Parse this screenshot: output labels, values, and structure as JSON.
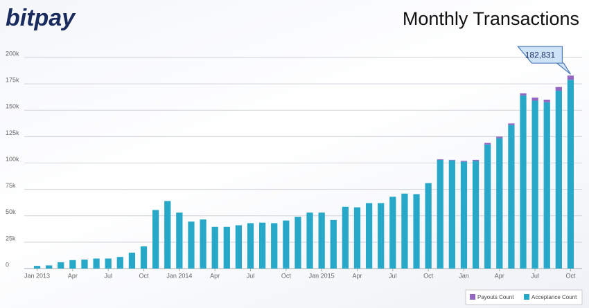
{
  "chart_data": {
    "type": "stacked_bar",
    "logo": "bitpay",
    "title": "Monthly Transactions",
    "annotation": "182,831",
    "categories": [
      "Jan 2013",
      null,
      null,
      "Apr",
      null,
      null,
      "Jul",
      null,
      null,
      "Oct",
      null,
      null,
      "Jan 2014",
      null,
      null,
      "Apr",
      null,
      null,
      "Jul",
      null,
      null,
      "Oct",
      null,
      null,
      "Jan 2015",
      null,
      null,
      "Apr",
      null,
      null,
      "Jul",
      null,
      null,
      "Oct",
      null,
      null,
      "Jan",
      null,
      null,
      "Apr",
      null,
      null,
      "Jul",
      null,
      null,
      "Oct"
    ],
    "series": [
      {
        "name": "Payouts Count",
        "color": "#9467c4",
        "values": [
          0,
          0,
          0,
          0,
          0,
          0,
          0,
          0,
          0,
          0,
          0,
          0,
          0,
          0,
          0,
          0,
          0,
          0,
          0,
          0,
          0,
          0,
          0,
          0,
          0,
          0,
          0,
          0,
          0,
          0,
          0,
          0,
          0,
          0,
          500,
          500,
          800,
          1000,
          1500,
          1500,
          1500,
          2000,
          3000,
          2500,
          3500,
          4000
        ]
      },
      {
        "name": "Acceptance Count",
        "color": "#27a8c8",
        "values": [
          2500,
          3000,
          6000,
          8000,
          8500,
          9500,
          9500,
          11000,
          15000,
          21000,
          55500,
          64000,
          53000,
          44500,
          46500,
          39500,
          39500,
          41000,
          43000,
          43500,
          43000,
          45500,
          49000,
          53000,
          53000,
          46000,
          58500,
          58000,
          62000,
          62000,
          68000,
          71000,
          70500,
          81000,
          103000,
          102500,
          101200,
          102000,
          117500,
          123500,
          136000,
          164000,
          159000,
          157500,
          168500,
          178831
        ]
      }
    ],
    "ylim": [
      0,
      200000
    ],
    "yticks": [
      0,
      {
        "value": 25000,
        "label": "25k"
      },
      {
        "value": 50000,
        "label": "50k"
      },
      {
        "value": 75000,
        "label": "75k"
      },
      {
        "value": 100000,
        "label": "100k"
      },
      {
        "value": 125000,
        "label": "125k"
      },
      {
        "value": 150000,
        "label": "150k"
      },
      {
        "value": 175000,
        "label": "175k"
      },
      {
        "value": 200000,
        "label": "200k"
      }
    ],
    "grid": true
  }
}
